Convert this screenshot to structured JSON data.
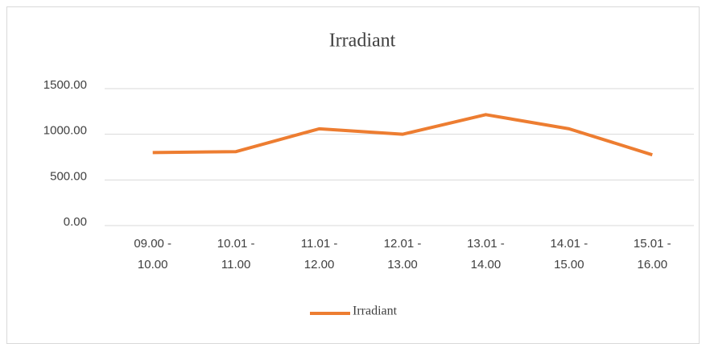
{
  "chart_data": {
    "type": "line",
    "title": "Irradiant",
    "categories": [
      "09.00 - 10.00",
      "10.01 - 11.00",
      "11.01 - 12.00",
      "12.01 - 13.00",
      "13.01 - 14.00",
      "14.01 - 15.00",
      "15.01 - 16.00"
    ],
    "series": [
      {
        "name": "Irradiant",
        "color": "#ed7d31",
        "values": [
          800,
          810,
          1060,
          1000,
          1215,
          1060,
          775
        ]
      }
    ],
    "ylim": [
      0,
      1500
    ],
    "yticks": [
      {
        "value": 0,
        "label": "0.00"
      },
      {
        "value": 500,
        "label": "500.00"
      },
      {
        "value": 1000,
        "label": "1000.00"
      },
      {
        "value": 1500,
        "label": "1500.00"
      }
    ],
    "grid": true,
    "legend": "bottom"
  }
}
